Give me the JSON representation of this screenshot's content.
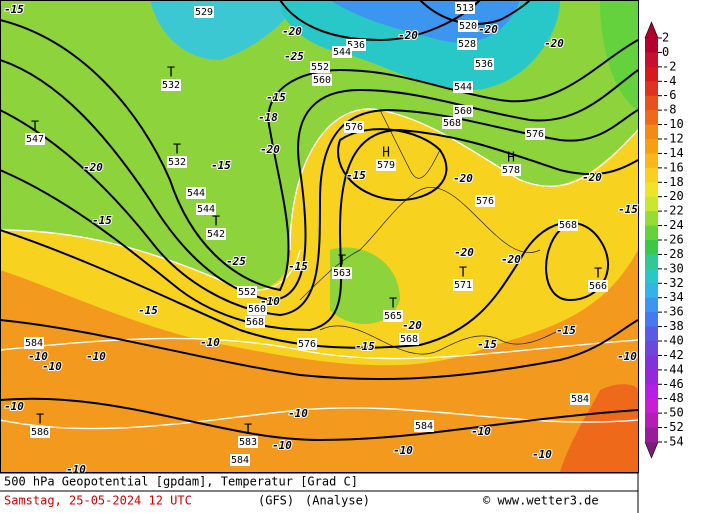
{
  "map": {
    "caption": "500 hPa Geopotential [gpdam], Temperatur [Grad C]",
    "date": "Samstag, 25-05-2024  12 UTC",
    "model": "(GFS)",
    "analysis": "(Analyse)",
    "copyright": "© www.wetter3.de",
    "legend": {
      "labels": [
        2,
        0,
        -2,
        -4,
        -6,
        -8,
        -10,
        -12,
        -14,
        -16,
        -18,
        -20,
        -22,
        -24,
        -26,
        -28,
        -30,
        -32,
        -34,
        -36,
        -38,
        -40,
        -42,
        -44,
        -46,
        -48,
        -50,
        -52,
        -54
      ],
      "colors": [
        "#b4002d",
        "#c8102e",
        "#d7191c",
        "#e03020",
        "#e8501e",
        "#ee6a1a",
        "#f08c14",
        "#f4a010",
        "#f8b81a",
        "#f8d020",
        "#f0e428",
        "#c8e632",
        "#96dc32",
        "#64d23c",
        "#3cc846",
        "#32c896",
        "#28c8c8",
        "#32b4e6",
        "#3c96f0",
        "#4678f0",
        "#5a5ae6",
        "#6e46dc",
        "#8232dc",
        "#9628dc",
        "#b41ee6",
        "#c81ed2",
        "#b41eb4",
        "#961e96",
        "#781e78"
      ]
    },
    "centers": [
      {
        "symbol": "T",
        "value": 547
      },
      {
        "symbol": "T",
        "value": 532
      },
      {
        "symbol": "T",
        "value": 532
      },
      {
        "symbol": "T",
        "value": 542
      },
      {
        "symbol": "H",
        "value": 579
      },
      {
        "symbol": "H",
        "value": 578
      },
      {
        "symbol": "T",
        "value": 563
      },
      {
        "symbol": "T",
        "value": 571
      },
      {
        "symbol": "T",
        "value": 566
      },
      {
        "symbol": "T",
        "value": 565
      },
      {
        "symbol": "T",
        "value": 586
      },
      {
        "symbol": "T",
        "value": 583
      }
    ],
    "height_labels": [
      529,
      513,
      520,
      528,
      536,
      536,
      544,
      544,
      552,
      560,
      560,
      568,
      576,
      576,
      576,
      568,
      584,
      576,
      568,
      560,
      568,
      552,
      544,
      544,
      584,
      584,
      584
    ],
    "temperature_labels": [
      -15,
      -20,
      -25,
      -20,
      -20,
      -20,
      -15,
      -18,
      -20,
      -20,
      -15,
      -15,
      -20,
      -20,
      -15,
      -15,
      -25,
      -15,
      -20,
      -20,
      -10,
      -15,
      -20,
      -15,
      -15,
      -15,
      -10,
      -10,
      -10,
      -10,
      -10,
      -10,
      -10,
      -10,
      -10,
      -10,
      -10,
      -10
    ]
  }
}
